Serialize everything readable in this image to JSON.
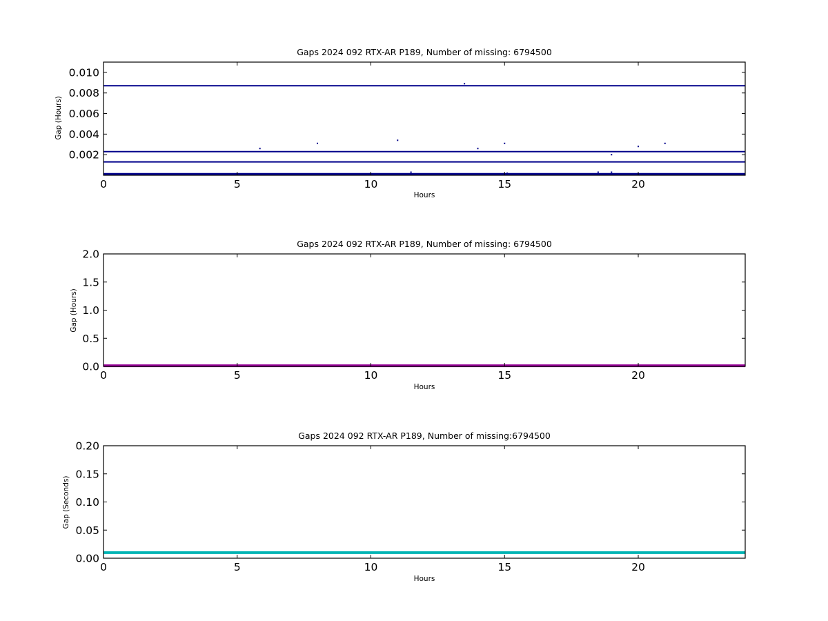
{
  "chart_data": [
    {
      "type": "scatter",
      "title": "Gaps 2024 092 RTX-AR  P189, Number of missing: 6794500",
      "xlabel": "Hours",
      "ylabel": "Gap (Hours)",
      "xlim": [
        0,
        24
      ],
      "ylim": [
        0,
        0.011
      ],
      "xticks": [
        0,
        5,
        10,
        15,
        20
      ],
      "xtick_labels": [
        "0",
        "5",
        "10",
        "15",
        "20"
      ],
      "yticks": [
        0.002,
        0.004,
        0.006,
        0.008,
        0.01
      ],
      "ytick_labels": [
        "0.002",
        "0.004",
        "0.006",
        "0.008",
        "0.010"
      ],
      "series_color": "#00008b",
      "hlines": [
        0.0087,
        0.0023,
        0.0013,
        0.00012,
        5e-05
      ],
      "points": [
        [
          5.85,
          0.0026
        ],
        [
          8.0,
          0.0031
        ],
        [
          11.0,
          0.0034
        ],
        [
          11.5,
          0.0003
        ],
        [
          13.5,
          0.0089
        ],
        [
          14.0,
          0.0026
        ],
        [
          15.0,
          0.0031
        ],
        [
          15.1,
          0.0002
        ],
        [
          18.5,
          0.0003
        ],
        [
          19.0,
          0.002
        ],
        [
          19.0,
          0.0003
        ],
        [
          20.0,
          0.0028
        ],
        [
          21.0,
          0.0031
        ]
      ],
      "grid": false
    },
    {
      "type": "line",
      "title": "Gaps 2024 092 RTX-AR  P189, Number of missing: 6794500",
      "xlabel": "Hours",
      "ylabel": "Gap (Hours)",
      "xlim": [
        0,
        24
      ],
      "ylim": [
        0,
        2.0
      ],
      "xticks": [
        0,
        5,
        10,
        15,
        20
      ],
      "xtick_labels": [
        "0",
        "5",
        "10",
        "15",
        "20"
      ],
      "yticks": [
        0.0,
        0.5,
        1.0,
        1.5,
        2.0
      ],
      "ytick_labels": [
        "0.0",
        "0.5",
        "1.0",
        "1.5",
        "2.0"
      ],
      "series_color": "#990099",
      "hlines": [
        0.01
      ],
      "grid": false
    },
    {
      "type": "line",
      "title": "Gaps 2024 092 RTX-AR  P189, Number of missing:6794500",
      "xlabel": "Hours",
      "ylabel": "Gap (Seconds)",
      "xlim": [
        0,
        24
      ],
      "ylim": [
        0,
        0.2
      ],
      "xticks": [
        0,
        5,
        10,
        15,
        20
      ],
      "xtick_labels": [
        "0",
        "5",
        "10",
        "15",
        "20"
      ],
      "yticks": [
        0.0,
        0.05,
        0.1,
        0.15,
        0.2
      ],
      "ytick_labels": [
        "0.00",
        "0.05",
        "0.10",
        "0.15",
        "0.20"
      ],
      "series_color": "#00b3b3",
      "hlines": [
        0.01
      ],
      "grid": false
    }
  ]
}
